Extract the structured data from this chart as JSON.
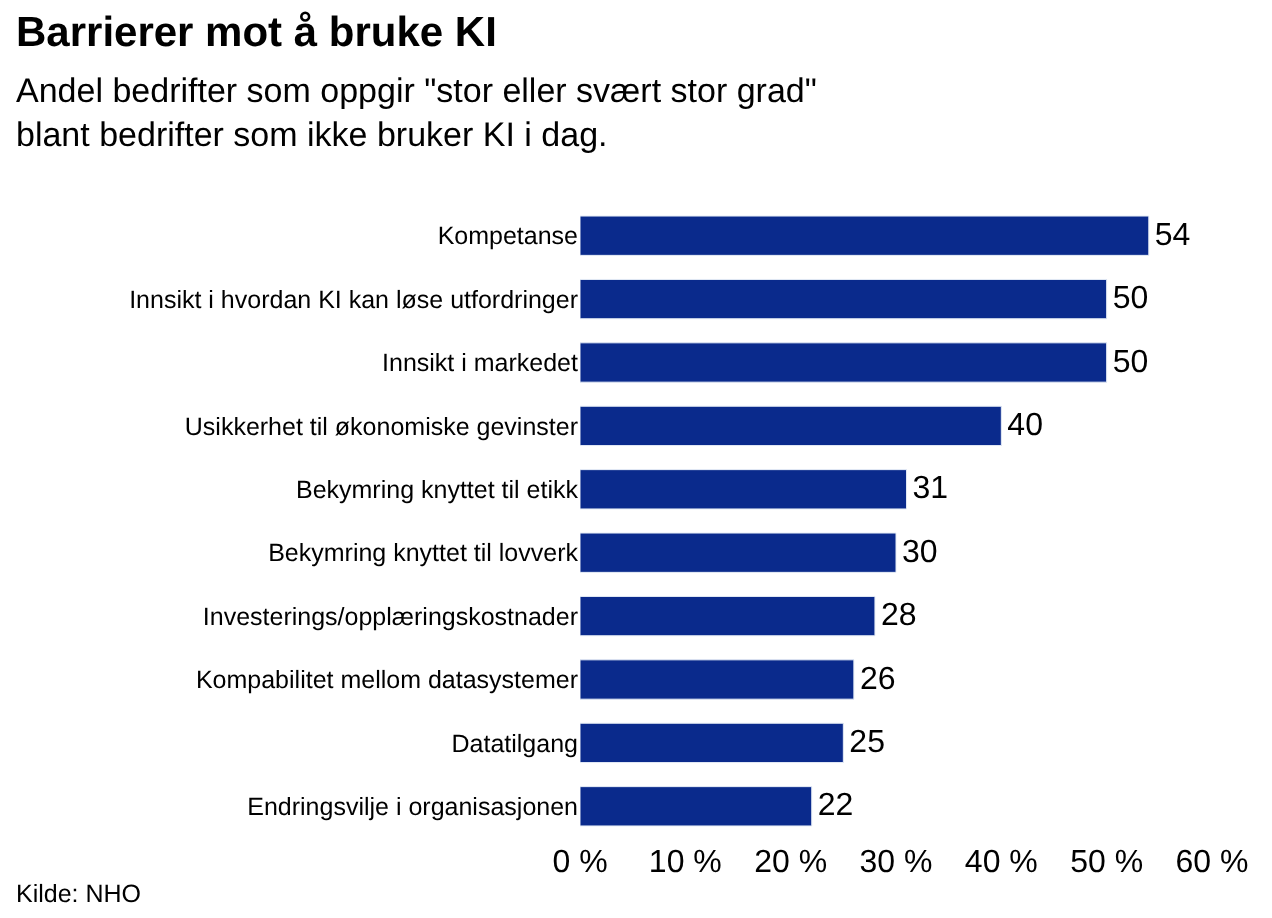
{
  "chart_data": {
    "type": "bar",
    "orientation": "horizontal",
    "title": "Barrierer mot å bruke KI",
    "subtitle": "Andel bedrifter som oppgir \"stor eller svært stor grad\"\nblant bedrifter som ikke bruker KI i dag.",
    "categories": [
      "Kompetanse",
      "Innsikt i hvordan KI kan løse utfordringer",
      "Innsikt i markedet",
      "Usikkerhet til økonomiske gevinster",
      "Bekymring knyttet til etikk",
      "Bekymring knyttet til lovverk",
      "Investerings/opplæringskostnader",
      "Kompabilitet mellom datasystemer",
      "Datatilgang",
      "Endringsvilje i organisasjonen"
    ],
    "values": [
      54,
      50,
      50,
      40,
      31,
      30,
      28,
      26,
      25,
      22
    ],
    "color": "#0a2a8c",
    "data_labels": true,
    "xlim": [
      0,
      60
    ],
    "xticks": [
      {
        "value": 0,
        "label": "0 %"
      },
      {
        "value": 10,
        "label": "10 %"
      },
      {
        "value": 20,
        "label": "20 %"
      },
      {
        "value": 30,
        "label": "30 %"
      },
      {
        "value": 40,
        "label": "40 %"
      },
      {
        "value": 50,
        "label": "50 %"
      },
      {
        "value": 60,
        "label": "60 %"
      }
    ],
    "annotations": [
      "Kilde: NHO"
    ]
  }
}
